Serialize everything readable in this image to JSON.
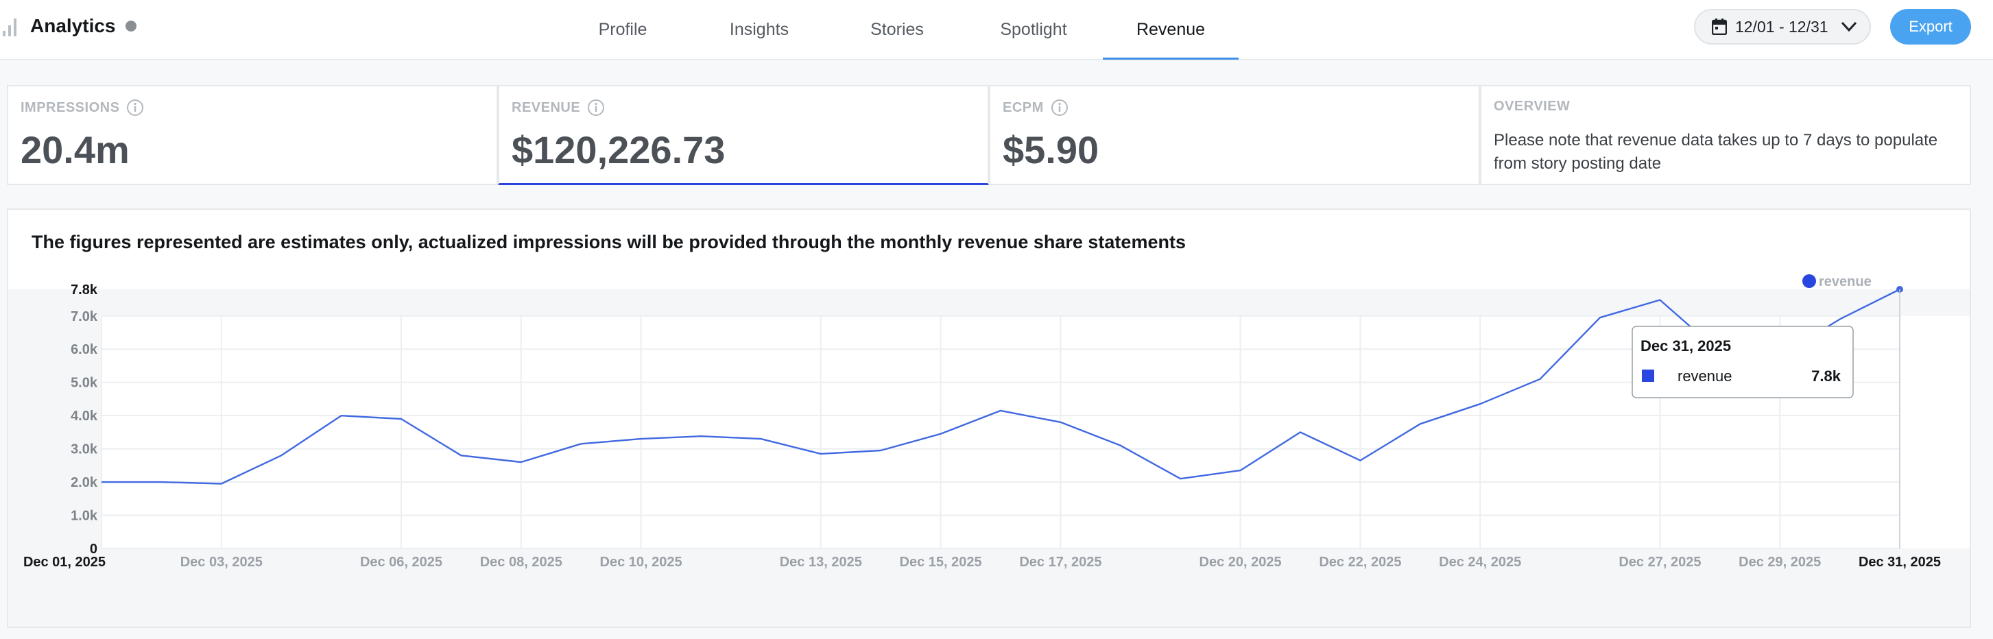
{
  "header": {
    "title": "Analytics",
    "tabs": [
      {
        "label": "Profile",
        "active": false
      },
      {
        "label": "Insights",
        "active": false
      },
      {
        "label": "Stories",
        "active": false
      },
      {
        "label": "Spotlight",
        "active": false
      },
      {
        "label": "Revenue",
        "active": true
      }
    ],
    "date_range": "12/01 - 12/31",
    "export_label": "Export",
    "icons": {
      "brand": "bar-chart-icon",
      "status": "status-dot-icon",
      "calendar": "calendar-icon",
      "dropdown": "chevron-down-icon"
    }
  },
  "metrics": [
    {
      "label": "IMPRESSIONS",
      "value": "20.4m",
      "has_info": true
    },
    {
      "label": "REVENUE",
      "value": "$120,226.73",
      "has_info": true,
      "active": true
    },
    {
      "label": "ECPM",
      "value": "$5.90",
      "has_info": true
    }
  ],
  "overview": {
    "label": "OVERVIEW",
    "text": "Please note that revenue data takes up to 7 days to populate from story posting date"
  },
  "chart_heading": "The figures represented are estimates only, actualized impressions will be provided through the monthly revenue share statements",
  "colors": {
    "accent": "#2a46e0",
    "tab_underline": "#3b8fe6",
    "export": "#4aa3f0",
    "line": "#4169e1"
  },
  "chart_data": {
    "type": "line",
    "x": [
      "Dec 01, 2025",
      "Dec 02, 2025",
      "Dec 03, 2025",
      "Dec 04, 2025",
      "Dec 05, 2025",
      "Dec 06, 2025",
      "Dec 07, 2025",
      "Dec 08, 2025",
      "Dec 09, 2025",
      "Dec 10, 2025",
      "Dec 11, 2025",
      "Dec 12, 2025",
      "Dec 13, 2025",
      "Dec 14, 2025",
      "Dec 15, 2025",
      "Dec 16, 2025",
      "Dec 17, 2025",
      "Dec 18, 2025",
      "Dec 19, 2025",
      "Dec 20, 2025",
      "Dec 21, 2025",
      "Dec 22, 2025",
      "Dec 23, 2025",
      "Dec 24, 2025",
      "Dec 25, 2025",
      "Dec 26, 2025",
      "Dec 27, 2025",
      "Dec 28, 2025",
      "Dec 29, 2025",
      "Dec 30, 2025",
      "Dec 31, 2025"
    ],
    "series": [
      {
        "name": "revenue",
        "values": [
          2000,
          2000,
          1950,
          2800,
          4000,
          3900,
          2800,
          2600,
          3150,
          3300,
          3380,
          3300,
          2850,
          2950,
          3450,
          4150,
          3800,
          3100,
          2100,
          2350,
          3500,
          2650,
          3750,
          4350,
          5100,
          6950,
          7480,
          5900,
          5800,
          6900,
          7800
        ]
      }
    ],
    "xlabel": "",
    "ylabel": "",
    "ylim": [
      0,
      7800
    ],
    "yticks": [
      {
        "value": 0,
        "label": "0"
      },
      {
        "value": 1000,
        "label": "1.0k"
      },
      {
        "value": 2000,
        "label": "2.0k"
      },
      {
        "value": 3000,
        "label": "3.0k"
      },
      {
        "value": 4000,
        "label": "4.0k"
      },
      {
        "value": 5000,
        "label": "5.0k"
      },
      {
        "value": 6000,
        "label": "6.0k"
      },
      {
        "value": 7000,
        "label": "7.0k"
      },
      {
        "value": 7800,
        "label": "7.8k"
      }
    ],
    "xticks": [
      {
        "index": 0,
        "label": "Dec 01, 2025",
        "bold": true
      },
      {
        "index": 2,
        "label": "Dec 03, 2025"
      },
      {
        "index": 5,
        "label": "Dec 06, 2025"
      },
      {
        "index": 7,
        "label": "Dec 08, 2025"
      },
      {
        "index": 9,
        "label": "Dec 10, 2025"
      },
      {
        "index": 12,
        "label": "Dec 13, 2025"
      },
      {
        "index": 14,
        "label": "Dec 15, 2025"
      },
      {
        "index": 16,
        "label": "Dec 17, 2025"
      },
      {
        "index": 19,
        "label": "Dec 20, 2025"
      },
      {
        "index": 21,
        "label": "Dec 22, 2025"
      },
      {
        "index": 23,
        "label": "Dec 24, 2025"
      },
      {
        "index": 26,
        "label": "Dec 27, 2025"
      },
      {
        "index": 28,
        "label": "Dec 29, 2025"
      },
      {
        "index": 30,
        "label": "Dec 31, 2025",
        "bold": true
      }
    ],
    "legend": {
      "label": "revenue",
      "position": "top-right"
    },
    "tooltip": {
      "title": "Dec 31, 2025",
      "series": "revenue",
      "value": "7.8k",
      "index": 30
    },
    "grid": true
  }
}
